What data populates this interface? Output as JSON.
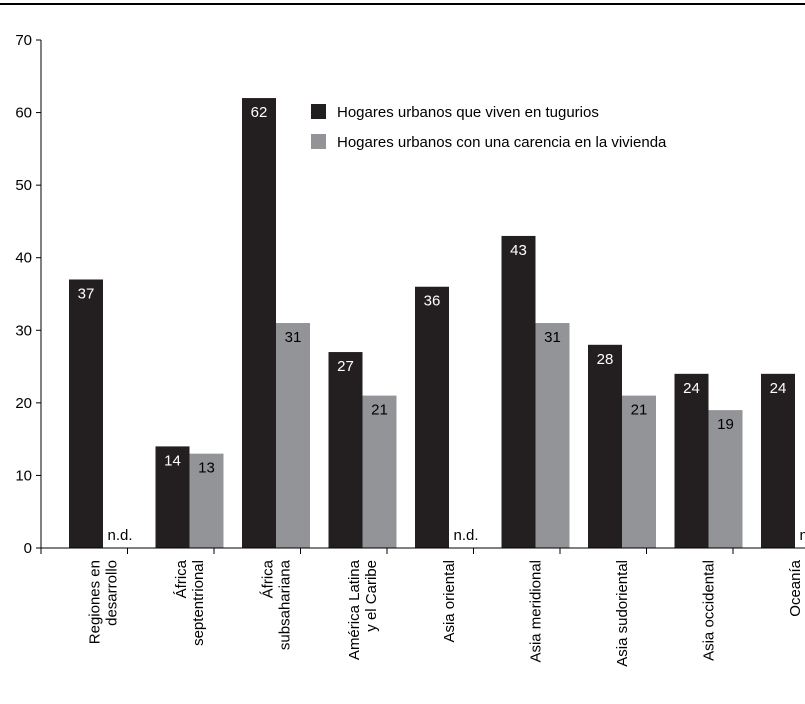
{
  "chart_data": {
    "type": "bar",
    "title": "",
    "xlabel": "",
    "ylabel": "",
    "ylim": [
      0,
      70
    ],
    "yticks": [
      0,
      10,
      20,
      30,
      40,
      50,
      60,
      70
    ],
    "categories": [
      [
        "Regiones en",
        "desarrollo"
      ],
      [
        "África",
        "septentrional"
      ],
      [
        "África",
        "subsahariana"
      ],
      [
        "América Latina",
        "y el Caribe"
      ],
      [
        "Asia oriental"
      ],
      [
        "Asia meridional"
      ],
      [
        "Asia sudoriental"
      ],
      [
        "Asia occidental"
      ],
      [
        "Oceanía"
      ]
    ],
    "series": [
      {
        "name": "Hogares urbanos que viven en tugurios",
        "color": "#231f20",
        "label_color": "#ffffff",
        "values": [
          37,
          14,
          62,
          27,
          36,
          43,
          28,
          24,
          24
        ]
      },
      {
        "name": "Hogares urbanos con una carencia en la vivienda",
        "color": "#929497",
        "label_color": "#000000",
        "values": [
          null,
          13,
          31,
          21,
          null,
          31,
          21,
          19,
          null
        ]
      }
    ],
    "missing_label": "n.d.",
    "legend_position": "top-right",
    "grid": false
  }
}
